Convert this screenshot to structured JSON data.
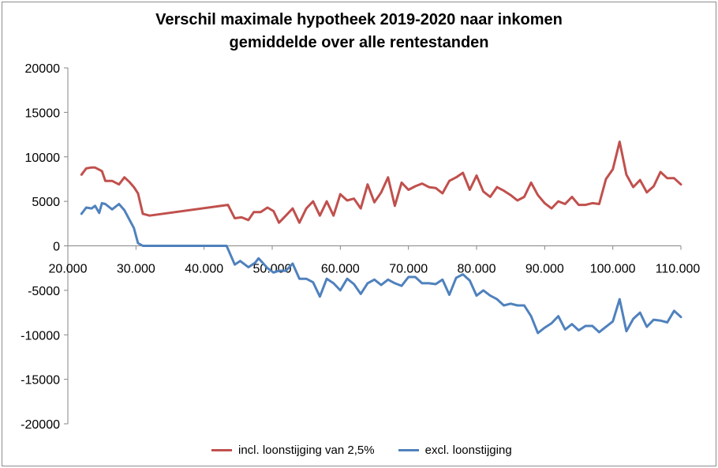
{
  "chart_data": {
    "type": "line",
    "title": "Verschil maximale hypotheek 2019-2020 naar inkomen",
    "subtitle": "gemiddelde over alle rentestanden",
    "xlim": [
      20000,
      110000
    ],
    "ylim": [
      -20000,
      20000
    ],
    "x_ticks": [
      20000,
      30000,
      40000,
      50000,
      60000,
      70000,
      80000,
      90000,
      100000,
      110000
    ],
    "x_tick_labels": [
      "20.000",
      "30.000",
      "40.000",
      "50.000",
      "60.000",
      "70.000",
      "80.000",
      "90.000",
      "100.000",
      "110.000"
    ],
    "y_ticks": [
      20000,
      15000,
      10000,
      5000,
      0,
      -5000,
      -10000,
      -15000,
      -20000
    ],
    "y_tick_labels": [
      "20000",
      "15000",
      "10000",
      "5000",
      "0",
      "-5000",
      "-10000",
      "-15000",
      "-20000"
    ],
    "grid": false,
    "legend_position": "bottom",
    "series": [
      {
        "name": "incl. loonstijging van 2,5%",
        "color": "#c0504d",
        "x": [
          22000,
          22700,
          23400,
          24000,
          25000,
          25500,
          26500,
          27500,
          28300,
          29000,
          29700,
          30300,
          31000,
          32000,
          43500,
          44500,
          45500,
          46500,
          47300,
          48300,
          49300,
          50200,
          51000,
          52000,
          53000,
          54000,
          55000,
          56000,
          57000,
          58000,
          59000,
          60000,
          61000,
          62000,
          63000,
          64000,
          65000,
          66000,
          67000,
          68000,
          69000,
          70000,
          71000,
          72000,
          73000,
          74000,
          75000,
          76000,
          77000,
          78000,
          79000,
          80000,
          81000,
          82000,
          83000,
          84000,
          85000,
          86000,
          87000,
          88000,
          89000,
          90000,
          91000,
          92000,
          93000,
          94000,
          95000,
          96000,
          97000,
          98000,
          99000,
          100000,
          101000,
          102000,
          103000,
          104000,
          105000,
          106000,
          107000,
          108000,
          109000,
          110000
        ],
        "values": [
          8000,
          8700,
          8800,
          8800,
          8400,
          7300,
          7300,
          6900,
          7700,
          7200,
          6600,
          5900,
          3600,
          3400,
          4600,
          3100,
          3200,
          2900,
          3800,
          3800,
          4300,
          3900,
          2600,
          3400,
          4200,
          2600,
          4200,
          5000,
          3400,
          5000,
          3400,
          5800,
          5100,
          5300,
          4200,
          6900,
          4900,
          6000,
          7700,
          4500,
          7100,
          6300,
          6700,
          7000,
          6600,
          6500,
          5900,
          7300,
          7700,
          8200,
          6300,
          7900,
          6100,
          5500,
          6600,
          6200,
          5700,
          5100,
          5500,
          7100,
          5700,
          4800,
          4200,
          5000,
          4700,
          5500,
          4600,
          4600,
          4800,
          4700,
          7500,
          8600,
          11700,
          8000,
          6600,
          7400,
          6000,
          6700,
          8300,
          7600,
          7600,
          6900
        ]
      },
      {
        "name": "excl. loonstijging",
        "color": "#4f81bd",
        "x": [
          22000,
          22700,
          23500,
          24000,
          24600,
          25000,
          25500,
          26500,
          27500,
          28300,
          29000,
          29700,
          30300,
          31000,
          32000,
          43300,
          44500,
          45300,
          46500,
          47500,
          48000,
          49300,
          50200,
          51000,
          52000,
          53000,
          54000,
          55000,
          56000,
          57000,
          58000,
          59000,
          60000,
          61000,
          62000,
          63000,
          64000,
          65000,
          66000,
          67000,
          68000,
          69000,
          70000,
          71000,
          72000,
          73000,
          74000,
          75000,
          76000,
          77000,
          78000,
          79000,
          80000,
          81000,
          82000,
          83000,
          84000,
          85000,
          86000,
          87000,
          88000,
          89000,
          90000,
          91000,
          92000,
          93000,
          94000,
          95000,
          96000,
          97000,
          98000,
          99000,
          100000,
          101000,
          102000,
          103000,
          104000,
          105000,
          106000,
          107000,
          108000,
          109000,
          110000
        ],
        "values": [
          3600,
          4300,
          4200,
          4500,
          3700,
          4800,
          4700,
          4100,
          4700,
          4000,
          3000,
          2000,
          300,
          0,
          0,
          0,
          -2100,
          -1700,
          -2400,
          -1900,
          -1400,
          -2500,
          -3000,
          -2800,
          -2800,
          -2000,
          -3700,
          -3700,
          -4100,
          -5700,
          -3700,
          -4200,
          -5000,
          -3700,
          -4300,
          -5400,
          -4200,
          -3800,
          -4400,
          -3800,
          -4200,
          -4500,
          -3500,
          -3500,
          -4200,
          -4200,
          -4300,
          -3800,
          -5500,
          -3600,
          -3200,
          -3900,
          -5600,
          -5000,
          -5600,
          -6000,
          -6700,
          -6500,
          -6700,
          -6700,
          -7900,
          -9800,
          -9200,
          -8700,
          -7900,
          -9400,
          -8800,
          -9500,
          -9000,
          -9000,
          -9700,
          -9100,
          -8500,
          -6000,
          -9600,
          -8200,
          -7500,
          -9100,
          -8300,
          -8400,
          -8600,
          -7300,
          -8000
        ]
      }
    ]
  }
}
